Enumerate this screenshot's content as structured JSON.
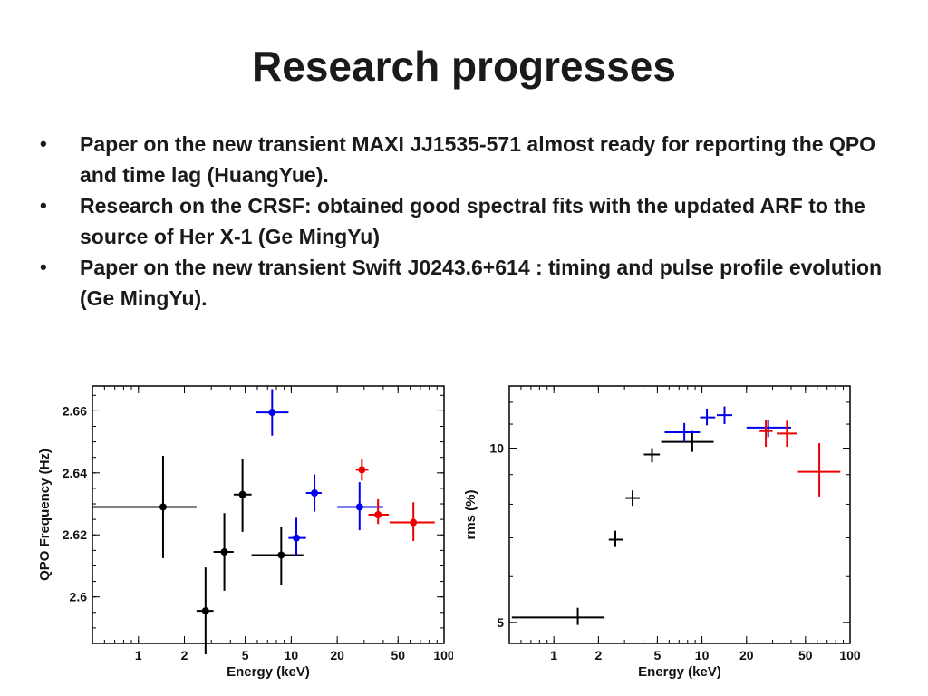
{
  "slide": {
    "title": "Research progresses",
    "bullets": [
      "Paper on the new transient MAXI JJ1535-571 almost ready for reporting the QPO and time lag (HuangYue).",
      "Research on the CRSF: obtained good spectral fits with the updated ARF to the source of Her X-1 (Ge MingYu)",
      "Paper on the new transient Swift J0243.6+614 : timing and pulse profile evolution (Ge MingYu)."
    ],
    "bullet_glyph": "•"
  },
  "chart_data": [
    {
      "type": "scatter",
      "xlabel": "Energy (keV)",
      "ylabel": "QPO Frequency (Hz)",
      "xscale": "log",
      "xlim": [
        0.5,
        100
      ],
      "ylim": [
        2.585,
        2.668
      ],
      "xticks": [
        1,
        2,
        5,
        10,
        20,
        50,
        100
      ],
      "xtick_labels": [
        "1",
        "2",
        "5",
        "10",
        "20",
        "50",
        "100"
      ],
      "yticks": [
        2.6,
        2.62,
        2.64,
        2.66
      ],
      "ytick_labels": [
        "2.6",
        "2.62",
        "2.64",
        "2.66"
      ],
      "grid": false,
      "marker": "dot",
      "series": [
        {
          "color": "#000000",
          "points": [
            {
              "x": 1.45,
              "xerr": [
                0.5,
                2.4
              ],
              "y": 2.629,
              "yerr": [
                2.6125,
                2.6455
              ]
            },
            {
              "x": 2.75,
              "xerr": [
                2.4,
                3.1
              ],
              "y": 2.5955,
              "yerr": [
                2.5815,
                2.6095
              ]
            },
            {
              "x": 3.65,
              "xerr": [
                3.1,
                4.2
              ],
              "y": 2.6145,
              "yerr": [
                2.602,
                2.627
              ]
            },
            {
              "x": 4.8,
              "xerr": [
                4.2,
                5.5
              ],
              "y": 2.633,
              "yerr": [
                2.621,
                2.6445
              ]
            },
            {
              "x": 8.6,
              "xerr": [
                5.5,
                12.0
              ],
              "y": 2.6135,
              "yerr": [
                2.604,
                2.6225
              ]
            }
          ]
        },
        {
          "color": "#0000ee",
          "points": [
            {
              "x": 7.5,
              "xerr": [
                5.9,
                9.6
              ],
              "y": 2.6595,
              "yerr": [
                2.652,
                2.667
              ]
            },
            {
              "x": 10.8,
              "xerr": [
                9.6,
                12.5
              ],
              "y": 2.619,
              "yerr": [
                2.6135,
                2.6255
              ]
            },
            {
              "x": 14.2,
              "xerr": [
                12.5,
                15.8
              ],
              "y": 2.6335,
              "yerr": [
                2.6275,
                2.6395
              ]
            },
            {
              "x": 28.0,
              "xerr": [
                20.0,
                40.0
              ],
              "y": 2.629,
              "yerr": [
                2.6215,
                2.637
              ]
            }
          ]
        },
        {
          "color": "#ee0000",
          "points": [
            {
              "x": 29.0,
              "xerr": [
                26.5,
                32.0
              ],
              "y": 2.641,
              "yerr": [
                2.6375,
                2.6445
              ]
            },
            {
              "x": 37.0,
              "xerr": [
                32.0,
                43.5
              ],
              "y": 2.6265,
              "yerr": [
                2.6235,
                2.6315
              ]
            },
            {
              "x": 63.0,
              "xerr": [
                44.0,
                87.0
              ],
              "y": 2.624,
              "yerr": [
                2.618,
                2.6305
              ]
            }
          ]
        }
      ]
    },
    {
      "type": "scatter",
      "xlabel": "Energy (keV)",
      "ylabel": "rms (%)",
      "xscale": "log",
      "yscale": "log",
      "xlim": [
        0.5,
        100
      ],
      "ylim": [
        4.6,
        12.8
      ],
      "xticks": [
        1,
        2,
        5,
        10,
        20,
        50,
        100
      ],
      "xtick_labels": [
        "1",
        "2",
        "5",
        "10",
        "20",
        "50",
        "100"
      ],
      "yticks": [
        5,
        10
      ],
      "ytick_labels": [
        "5",
        "10"
      ],
      "grid": false,
      "marker": "cross",
      "series": [
        {
          "color": "#000000",
          "points": [
            {
              "x": 1.45,
              "xerr": [
                0.52,
                2.2
              ],
              "y": 5.1,
              "yerr": [
                4.95,
                5.3
              ]
            },
            {
              "x": 2.6,
              "xerr": [
                2.35,
                2.95
              ],
              "y": 6.95,
              "yerr": [
                6.75,
                7.2
              ]
            },
            {
              "x": 3.4,
              "xerr": [
                3.05,
                3.8
              ],
              "y": 8.2,
              "yerr": [
                7.95,
                8.45
              ]
            },
            {
              "x": 4.6,
              "xerr": [
                4.05,
                5.2
              ],
              "y": 9.75,
              "yerr": [
                9.45,
                10.0
              ]
            },
            {
              "x": 8.6,
              "xerr": [
                5.3,
                12.0
              ],
              "y": 10.25,
              "yerr": [
                9.85,
                10.7
              ]
            }
          ]
        },
        {
          "color": "#0000ee",
          "points": [
            {
              "x": 7.6,
              "xerr": [
                5.6,
                9.7
              ],
              "y": 10.65,
              "yerr": [
                10.25,
                11.05
              ]
            },
            {
              "x": 10.8,
              "xerr": [
                9.7,
                12.3
              ],
              "y": 11.3,
              "yerr": [
                10.95,
                11.7
              ]
            },
            {
              "x": 14.2,
              "xerr": [
                12.6,
                16.0
              ],
              "y": 11.4,
              "yerr": [
                11.0,
                11.8
              ]
            },
            {
              "x": 28.0,
              "xerr": [
                20.0,
                40.0
              ],
              "y": 10.85,
              "yerr": [
                10.45,
                11.2
              ]
            }
          ]
        },
        {
          "color": "#ee0000",
          "points": [
            {
              "x": 27.0,
              "xerr": [
                24.5,
                30.0
              ],
              "y": 10.7,
              "yerr": [
                10.05,
                11.2
              ]
            },
            {
              "x": 37.5,
              "xerr": [
                32.0,
                44.0
              ],
              "y": 10.6,
              "yerr": [
                10.05,
                11.15
              ]
            },
            {
              "x": 62.0,
              "xerr": [
                44.5,
                86.0
              ],
              "y": 9.1,
              "yerr": [
                8.25,
                10.2
              ]
            }
          ]
        }
      ]
    }
  ]
}
